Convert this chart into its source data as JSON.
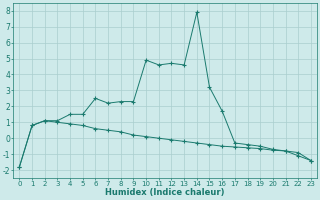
{
  "xlabel": "Humidex (Indice chaleur)",
  "x": [
    0,
    1,
    2,
    3,
    4,
    5,
    6,
    7,
    8,
    9,
    10,
    11,
    12,
    13,
    14,
    15,
    16,
    17,
    18,
    19,
    20,
    21,
    22,
    23
  ],
  "line1_y": [
    -1.8,
    0.8,
    1.1,
    1.1,
    1.5,
    1.5,
    2.5,
    2.2,
    2.3,
    2.3,
    4.9,
    4.6,
    4.7,
    4.6,
    7.9,
    3.2,
    1.7,
    -0.3,
    -0.4,
    -0.5,
    -0.7,
    -0.8,
    -1.1,
    -1.4
  ],
  "line2_y": [
    -1.8,
    0.8,
    1.1,
    1.0,
    0.9,
    0.8,
    0.6,
    0.5,
    0.4,
    0.2,
    0.1,
    0.0,
    -0.1,
    -0.2,
    -0.3,
    -0.4,
    -0.5,
    -0.55,
    -0.6,
    -0.65,
    -0.75,
    -0.8,
    -0.9,
    -1.4
  ],
  "line_color": "#1a7a6e",
  "bg_color": "#ceeaea",
  "grid_color": "#aacece",
  "ylim": [
    -2.5,
    8.5
  ],
  "xlim": [
    -0.5,
    23.5
  ],
  "yticks": [
    -2,
    -1,
    0,
    1,
    2,
    3,
    4,
    5,
    6,
    7,
    8
  ],
  "xticks": [
    0,
    1,
    2,
    3,
    4,
    5,
    6,
    7,
    8,
    9,
    10,
    11,
    12,
    13,
    14,
    15,
    16,
    17,
    18,
    19,
    20,
    21,
    22,
    23
  ],
  "tick_fontsize": 5,
  "xlabel_fontsize": 6,
  "marker_size": 2.5,
  "linewidth": 0.7
}
